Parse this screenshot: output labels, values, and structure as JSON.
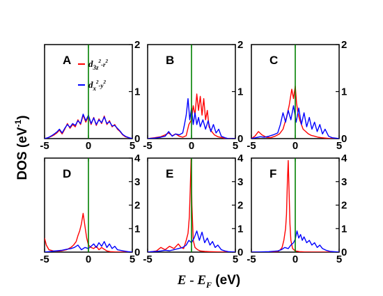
{
  "chart_data": {
    "type": "line",
    "ylabel": "DOS (eV",
    "ylabel_sup": "-1",
    "ylabel_close": ")",
    "xlabel_E": "E",
    "xlabel_minus": " - ",
    "xlabel_EF": "E",
    "xlabel_EF_sub": "F",
    "xlabel_unit": " (eV)",
    "xlim": [
      -5,
      5
    ],
    "xticks": [
      "-5",
      "0",
      "5"
    ],
    "legend": {
      "placement": "top-right of panel A",
      "entries": [
        {
          "color": "#ff0000",
          "d": "d",
          "sub_main": "3z",
          "sup_main": "2",
          "mid": "-r",
          "sup_end": "2"
        },
        {
          "color": "#0000ff",
          "d": "d",
          "sub_main": "x",
          "sup_main": "2",
          "mid": "-y",
          "sup_end": "2"
        }
      ]
    },
    "panels": [
      {
        "letter": "A",
        "ylim": [
          0,
          2
        ],
        "yticks": [
          "0",
          "1",
          "2"
        ],
        "series": [
          {
            "color": "#ff0000",
            "x": [
              -5,
              -4.6,
              -4.2,
              -3.9,
              -3.6,
              -3.3,
              -3.0,
              -2.7,
              -2.4,
              -2.1,
              -1.8,
              -1.5,
              -1.2,
              -0.9,
              -0.6,
              -0.3,
              0.0,
              0.3,
              0.6,
              0.9,
              1.2,
              1.5,
              1.8,
              2.1,
              2.4,
              2.7,
              3.0,
              3.3,
              3.6,
              3.9,
              4.2,
              4.6,
              5.0
            ],
            "y": [
              0.0,
              0.02,
              0.05,
              0.08,
              0.12,
              0.18,
              0.1,
              0.2,
              0.32,
              0.22,
              0.3,
              0.25,
              0.4,
              0.3,
              0.5,
              0.35,
              0.48,
              0.3,
              0.45,
              0.28,
              0.42,
              0.32,
              0.48,
              0.3,
              0.38,
              0.25,
              0.3,
              0.2,
              0.15,
              0.08,
              0.04,
              0.02,
              0.0
            ]
          },
          {
            "color": "#0000ff",
            "x": [
              -5,
              -4.6,
              -4.2,
              -3.9,
              -3.6,
              -3.3,
              -3.0,
              -2.7,
              -2.4,
              -2.1,
              -1.8,
              -1.5,
              -1.2,
              -0.9,
              -0.6,
              -0.3,
              0.0,
              0.3,
              0.6,
              0.9,
              1.2,
              1.5,
              1.8,
              2.1,
              2.4,
              2.7,
              3.0,
              3.3,
              3.6,
              3.9,
              4.2,
              4.6,
              5.0
            ],
            "y": [
              0.0,
              0.02,
              0.06,
              0.1,
              0.14,
              0.2,
              0.12,
              0.22,
              0.3,
              0.24,
              0.32,
              0.28,
              0.38,
              0.32,
              0.52,
              0.38,
              0.5,
              0.32,
              0.44,
              0.3,
              0.4,
              0.34,
              0.46,
              0.32,
              0.36,
              0.27,
              0.28,
              0.22,
              0.16,
              0.09,
              0.05,
              0.02,
              0.0
            ]
          }
        ]
      },
      {
        "letter": "B",
        "ylim": [
          0,
          2
        ],
        "yticks": [
          "0",
          "1",
          "2"
        ],
        "series": [
          {
            "color": "#ff0000",
            "x": [
              -5,
              -4.2,
              -3.5,
              -3.0,
              -2.6,
              -2.2,
              -1.8,
              -1.4,
              -1.0,
              -0.6,
              -0.3,
              0.0,
              0.2,
              0.4,
              0.6,
              0.8,
              1.0,
              1.2,
              1.4,
              1.6,
              1.8,
              2.0,
              2.3,
              2.6,
              3.0,
              3.5,
              4.0,
              5.0
            ],
            "y": [
              0.0,
              0.02,
              0.04,
              0.08,
              0.12,
              0.06,
              0.1,
              0.05,
              0.03,
              0.06,
              0.3,
              0.4,
              0.7,
              0.5,
              0.95,
              0.6,
              0.9,
              0.5,
              0.85,
              0.4,
              0.6,
              0.25,
              0.15,
              0.08,
              0.04,
              0.02,
              0.0,
              0.0
            ]
          },
          {
            "color": "#0000ff",
            "x": [
              -5,
              -4.2,
              -3.5,
              -3.0,
              -2.6,
              -2.2,
              -1.8,
              -1.4,
              -1.0,
              -0.8,
              -0.6,
              -0.4,
              -0.2,
              0.0,
              0.2,
              0.4,
              0.6,
              0.8,
              1.0,
              1.3,
              1.6,
              1.9,
              2.2,
              2.5,
              2.8,
              3.1,
              3.4,
              3.8,
              4.2,
              5.0
            ],
            "y": [
              0.0,
              0.01,
              0.03,
              0.05,
              0.15,
              0.05,
              0.1,
              0.08,
              0.12,
              0.3,
              0.5,
              0.85,
              0.4,
              0.65,
              0.3,
              0.55,
              0.3,
              0.45,
              0.25,
              0.4,
              0.2,
              0.38,
              0.15,
              0.3,
              0.12,
              0.2,
              0.05,
              0.02,
              0.0,
              0.0
            ]
          }
        ]
      },
      {
        "letter": "C",
        "ylim": [
          0,
          2
        ],
        "yticks": [
          "0",
          "1",
          "2"
        ],
        "series": [
          {
            "color": "#ff0000",
            "x": [
              -5,
              -4.6,
              -4.2,
              -3.8,
              -3.3,
              -2.8,
              -2.3,
              -1.8,
              -1.4,
              -1.0,
              -0.7,
              -0.4,
              -0.2,
              0.0,
              0.15,
              0.3,
              0.5,
              0.7,
              0.9,
              1.2,
              1.5,
              1.8,
              2.2,
              2.6,
              3.0,
              3.5,
              4.0,
              5.0
            ],
            "y": [
              0.0,
              0.05,
              0.15,
              0.08,
              0.03,
              0.02,
              0.05,
              0.1,
              0.2,
              0.45,
              0.7,
              1.05,
              0.85,
              1.12,
              0.75,
              0.55,
              0.4,
              0.3,
              0.2,
              0.15,
              0.1,
              0.07,
              0.05,
              0.03,
              0.02,
              0.01,
              0.0,
              0.0
            ]
          },
          {
            "color": "#0000ff",
            "x": [
              -5,
              -4.5,
              -4.0,
              -3.5,
              -3.0,
              -2.5,
              -2.0,
              -1.7,
              -1.4,
              -1.1,
              -0.8,
              -0.5,
              -0.2,
              0.1,
              0.4,
              0.7,
              1.0,
              1.3,
              1.6,
              1.9,
              2.2,
              2.5,
              2.8,
              3.1,
              3.4,
              3.8,
              4.2,
              5.0
            ],
            "y": [
              0.0,
              0.02,
              0.04,
              0.03,
              0.05,
              0.08,
              0.12,
              0.3,
              0.55,
              0.35,
              0.6,
              0.4,
              0.7,
              0.35,
              0.65,
              0.3,
              0.55,
              0.25,
              0.45,
              0.2,
              0.35,
              0.15,
              0.3,
              0.1,
              0.2,
              0.05,
              0.02,
              0.0
            ]
          }
        ]
      },
      {
        "letter": "D",
        "ylim": [
          0,
          4
        ],
        "yticks": [
          "0",
          "1",
          "2",
          "3",
          "4"
        ],
        "series": [
          {
            "color": "#ff0000",
            "x": [
              -5,
              -4.8,
              -4.5,
              -4.0,
              -3.5,
              -3.0,
              -2.5,
              -2.0,
              -1.7,
              -1.4,
              -1.2,
              -1.0,
              -0.8,
              -0.6,
              -0.4,
              -0.2,
              0.0,
              0.3,
              0.6,
              0.9,
              1.2,
              1.5,
              1.8,
              2.1,
              2.5,
              3.0,
              4.0,
              5.0
            ],
            "y": [
              0.6,
              0.3,
              0.1,
              0.05,
              0.04,
              0.06,
              0.1,
              0.2,
              0.3,
              0.45,
              0.7,
              0.9,
              1.2,
              1.65,
              1.1,
              0.6,
              0.3,
              0.2,
              0.15,
              0.25,
              0.1,
              0.2,
              0.12,
              0.05,
              0.02,
              0.01,
              0.0,
              0.0
            ]
          },
          {
            "color": "#0000ff",
            "x": [
              -5,
              -4.5,
              -4.0,
              -3.5,
              -3.0,
              -2.5,
              -2.0,
              -1.6,
              -1.2,
              -0.8,
              -0.4,
              0.0,
              0.3,
              0.6,
              0.9,
              1.2,
              1.5,
              1.8,
              2.1,
              2.4,
              2.7,
              3.0,
              3.3,
              3.6,
              4.0,
              4.5,
              5.0
            ],
            "y": [
              0.0,
              0.02,
              0.04,
              0.06,
              0.08,
              0.12,
              0.15,
              0.2,
              0.3,
              0.1,
              0.2,
              0.15,
              0.25,
              0.35,
              0.2,
              0.4,
              0.25,
              0.45,
              0.2,
              0.35,
              0.15,
              0.25,
              0.1,
              0.08,
              0.05,
              0.02,
              0.0
            ]
          }
        ]
      },
      {
        "letter": "E",
        "ylim": [
          0,
          4
        ],
        "yticks": [
          "0",
          "1",
          "2",
          "3",
          "4"
        ],
        "series": [
          {
            "color": "#ff0000",
            "x": [
              -5,
              -4.5,
              -4.0,
              -3.5,
              -3.0,
              -2.5,
              -2.0,
              -1.5,
              -1.2,
              -0.9,
              -0.6,
              -0.4,
              -0.25,
              -0.15,
              -0.05,
              0.05,
              0.2,
              0.4,
              0.7,
              1.0,
              1.5,
              2.0,
              3.0,
              4.0,
              5.0
            ],
            "y": [
              0.0,
              0.02,
              0.05,
              0.2,
              0.1,
              0.25,
              0.15,
              0.35,
              0.2,
              0.15,
              0.5,
              0.8,
              1.5,
              2.6,
              3.95,
              2.0,
              0.5,
              0.2,
              0.1,
              0.05,
              0.03,
              0.02,
              0.01,
              0.0,
              0.0
            ]
          },
          {
            "color": "#0000ff",
            "x": [
              -5,
              -4.5,
              -4.0,
              -3.5,
              -3.0,
              -2.5,
              -2.0,
              -1.5,
              -1.0,
              -0.6,
              -0.3,
              0.0,
              0.3,
              0.6,
              0.9,
              1.2,
              1.5,
              1.8,
              2.1,
              2.4,
              2.7,
              3.0,
              3.4,
              3.8,
              4.2,
              5.0
            ],
            "y": [
              0.0,
              0.02,
              0.03,
              0.05,
              0.08,
              0.06,
              0.1,
              0.15,
              0.2,
              0.3,
              0.5,
              0.4,
              0.6,
              0.9,
              0.5,
              0.85,
              0.4,
              0.6,
              0.3,
              0.45,
              0.2,
              0.3,
              0.1,
              0.05,
              0.02,
              0.0
            ]
          }
        ]
      },
      {
        "letter": "F",
        "ylim": [
          0,
          4
        ],
        "yticks": [
          "0",
          "1",
          "2",
          "3",
          "4"
        ],
        "series": [
          {
            "color": "#ff0000",
            "x": [
              -5,
              -4.0,
              -3.0,
              -2.0,
              -1.7,
              -1.5,
              -1.3,
              -1.1,
              -1.0,
              -0.9,
              -0.8,
              -0.7,
              -0.6,
              -0.5,
              -0.3,
              0.0,
              0.5,
              1.0,
              2.0,
              3.0,
              5.0
            ],
            "y": [
              0.0,
              0.0,
              0.01,
              0.03,
              0.1,
              0.2,
              0.5,
              1.0,
              1.6,
              3.0,
              3.9,
              2.5,
              1.2,
              0.5,
              0.15,
              0.05,
              0.02,
              0.01,
              0.0,
              0.0,
              0.0
            ]
          },
          {
            "color": "#0000ff",
            "x": [
              -5,
              -4.0,
              -3.0,
              -2.0,
              -1.6,
              -1.2,
              -0.8,
              -0.5,
              -0.2,
              0.0,
              0.2,
              0.4,
              0.6,
              0.8,
              1.0,
              1.3,
              1.6,
              1.9,
              2.2,
              2.5,
              2.8,
              3.1,
              3.5,
              4.0,
              5.0
            ],
            "y": [
              0.0,
              0.01,
              0.02,
              0.05,
              0.1,
              0.2,
              0.15,
              0.3,
              0.4,
              0.55,
              0.9,
              0.6,
              0.75,
              0.5,
              0.65,
              0.4,
              0.5,
              0.3,
              0.4,
              0.2,
              0.3,
              0.15,
              0.08,
              0.03,
              0.0
            ]
          }
        ]
      }
    ]
  }
}
